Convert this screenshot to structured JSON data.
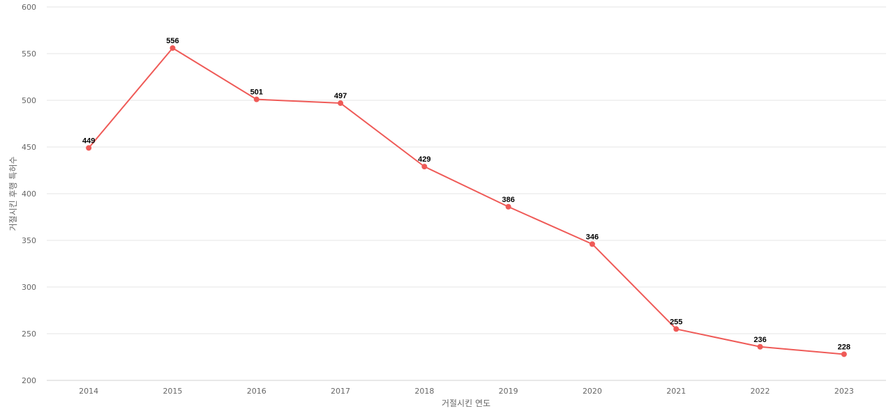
{
  "chart_data": {
    "type": "line",
    "title": "",
    "xlabel": "거절시킨 연도",
    "ylabel": "거절시킨 후행 특허수",
    "categories": [
      "2014",
      "2015",
      "2016",
      "2017",
      "2018",
      "2019",
      "2020",
      "2021",
      "2022",
      "2023"
    ],
    "series": [
      {
        "values": [
          449,
          556,
          501,
          497,
          429,
          386,
          346,
          255,
          236,
          228
        ],
        "color": "#ef5a57"
      }
    ],
    "ylim": [
      200,
      600
    ],
    "yticks": [
      200,
      250,
      300,
      350,
      400,
      450,
      500,
      550,
      600
    ],
    "grid": true,
    "data_labels": true,
    "legend": "none"
  }
}
